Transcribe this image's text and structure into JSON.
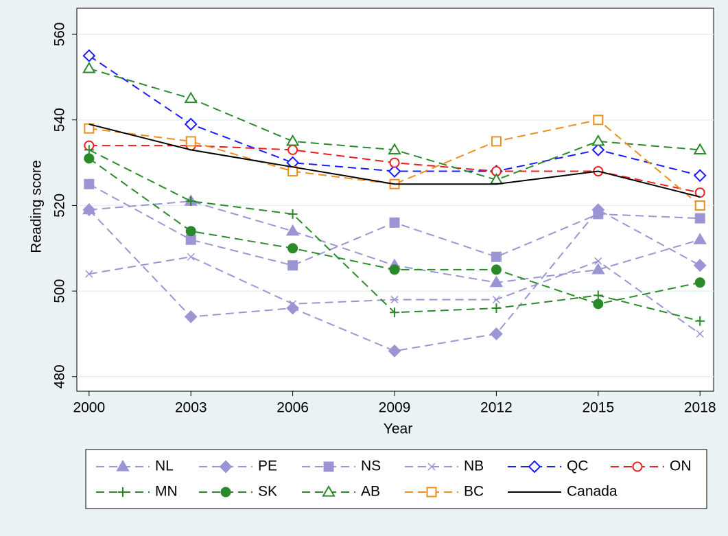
{
  "chart_data": {
    "type": "line",
    "x_label": "Year",
    "y_label": "Reading score",
    "x": [
      2000,
      2003,
      2006,
      2009,
      2012,
      2015,
      2018
    ],
    "xlim": [
      1999.64,
      2018.4
    ],
    "xticks": [
      2000,
      2003,
      2006,
      2009,
      2012,
      2015,
      2018
    ],
    "ylim": [
      476.6,
      566.1
    ],
    "yticks": [
      480,
      500,
      520,
      540,
      560
    ],
    "grid": true,
    "series": [
      {
        "name": "NL",
        "color": "#9b95d4",
        "marker": "triangle",
        "dash": true,
        "values": [
          519,
          521,
          514,
          506,
          502,
          505,
          512
        ]
      },
      {
        "name": "PE",
        "color": "#9b95d4",
        "marker": "diamond",
        "dash": true,
        "values": [
          519,
          494,
          496,
          486,
          490,
          519,
          506
        ]
      },
      {
        "name": "NS",
        "color": "#9b95d4",
        "marker": "square",
        "dash": true,
        "values": [
          525,
          512,
          506,
          516,
          508,
          518,
          517
        ]
      },
      {
        "name": "NB",
        "color": "#9b95d4",
        "marker": "x",
        "dash": true,
        "values": [
          504,
          508,
          497,
          498,
          498,
          507,
          490
        ]
      },
      {
        "name": "QC",
        "color": "#1a1aff",
        "marker": "diamond-open",
        "dash": true,
        "values": [
          555,
          539,
          530,
          528,
          528,
          533,
          527
        ]
      },
      {
        "name": "ON",
        "color": "#ee1c1c",
        "marker": "circle-open",
        "dash": true,
        "values": [
          534,
          534,
          533,
          530,
          528,
          528,
          523
        ]
      },
      {
        "name": "MN",
        "color": "#2a8a2a",
        "marker": "plus",
        "dash": true,
        "values": [
          533,
          521,
          518,
          495,
          496,
          499,
          493
        ]
      },
      {
        "name": "SK",
        "color": "#2a8a2a",
        "marker": "circle",
        "dash": true,
        "values": [
          531,
          514,
          510,
          505,
          505,
          497,
          502
        ]
      },
      {
        "name": "AB",
        "color": "#2a8a2a",
        "marker": "triangle-open",
        "dash": true,
        "values": [
          552,
          545,
          535,
          533,
          526,
          535,
          533
        ]
      },
      {
        "name": "BC",
        "color": "#f08c1e",
        "marker": "square-open",
        "dash": true,
        "values": [
          538,
          535,
          528,
          525,
          535,
          540,
          520
        ]
      },
      {
        "name": "Canada",
        "color": "#000000",
        "marker": "none",
        "dash": false,
        "values": [
          539,
          533,
          529,
          525,
          525,
          528,
          522
        ]
      }
    ]
  }
}
